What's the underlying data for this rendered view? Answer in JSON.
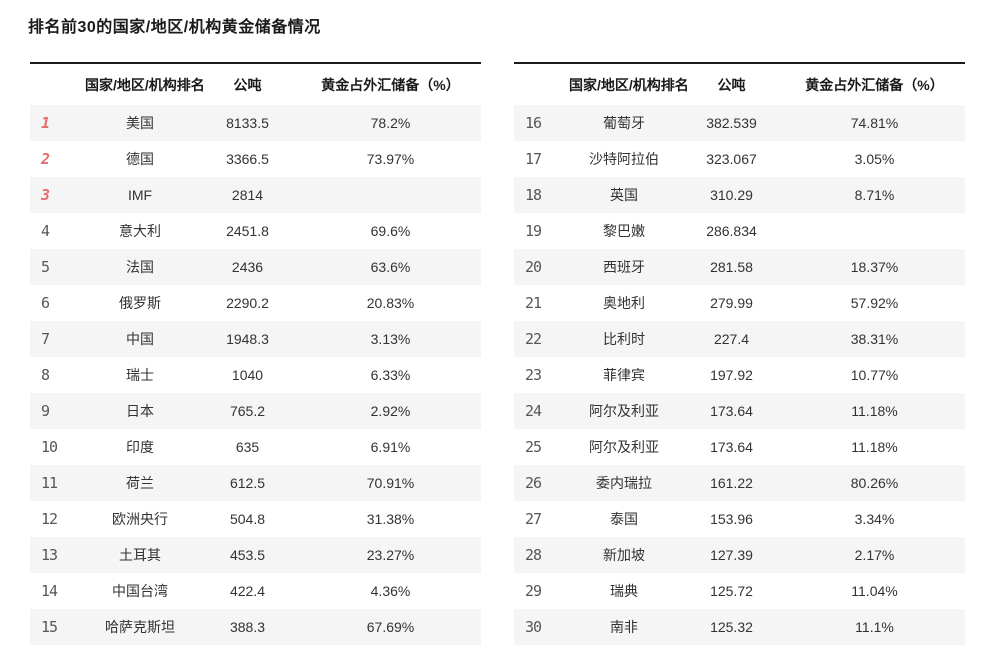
{
  "page": {
    "title": "排名前30的国家/地区/机构黄金储备情况"
  },
  "table_headers": {
    "rank": "",
    "name": "国家/地区/机构排名",
    "tonnes": "公吨",
    "pct": "黄金占外汇储备（%）"
  },
  "colors": {
    "rank_top3_red": "#e96a6a",
    "rank_normal": "#575757",
    "row_stripe": "#f5f5f5",
    "table_top_border": "#1b1b1b",
    "cell_text": "#333333",
    "header_text": "#1a1a1a"
  },
  "chart_data": {
    "type": "table",
    "title": "排名前30的国家/地区/机构黄金储备情况",
    "columns": [
      "国家/地区/机构排名",
      "公吨",
      "黄金占外汇储备（%）"
    ],
    "layout": {
      "split": [
        15,
        15
      ],
      "striped": true,
      "top3_highlighted": true
    },
    "rows": [
      {
        "rank": 1,
        "name": "美国",
        "tonnes": "8133.5",
        "pct": "78.2%"
      },
      {
        "rank": 2,
        "name": "德国",
        "tonnes": "3366.5",
        "pct": "73.97%"
      },
      {
        "rank": 3,
        "name": "IMF",
        "tonnes": "2814",
        "pct": ""
      },
      {
        "rank": 4,
        "name": "意大利",
        "tonnes": "2451.8",
        "pct": "69.6%"
      },
      {
        "rank": 5,
        "name": "法国",
        "tonnes": "2436",
        "pct": "63.6%"
      },
      {
        "rank": 6,
        "name": "俄罗斯",
        "tonnes": "2290.2",
        "pct": "20.83%"
      },
      {
        "rank": 7,
        "name": "中国",
        "tonnes": "1948.3",
        "pct": "3.13%"
      },
      {
        "rank": 8,
        "name": "瑞士",
        "tonnes": "1040",
        "pct": "6.33%"
      },
      {
        "rank": 9,
        "name": "日本",
        "tonnes": "765.2",
        "pct": "2.92%"
      },
      {
        "rank": 10,
        "name": "印度",
        "tonnes": "635",
        "pct": "6.91%"
      },
      {
        "rank": 11,
        "name": "荷兰",
        "tonnes": "612.5",
        "pct": "70.91%"
      },
      {
        "rank": 12,
        "name": "欧洲央行",
        "tonnes": "504.8",
        "pct": "31.38%"
      },
      {
        "rank": 13,
        "name": "土耳其",
        "tonnes": "453.5",
        "pct": "23.27%"
      },
      {
        "rank": 14,
        "name": "中国台湾",
        "tonnes": "422.4",
        "pct": "4.36%"
      },
      {
        "rank": 15,
        "name": "哈萨克斯坦",
        "tonnes": "388.3",
        "pct": "67.69%"
      },
      {
        "rank": 16,
        "name": "葡萄牙",
        "tonnes": "382.539",
        "pct": "74.81%"
      },
      {
        "rank": 17,
        "name": "沙特阿拉伯",
        "tonnes": "323.067",
        "pct": "3.05%"
      },
      {
        "rank": 18,
        "name": "英国",
        "tonnes": "310.29",
        "pct": "8.71%"
      },
      {
        "rank": 19,
        "name": "黎巴嫩",
        "tonnes": "286.834",
        "pct": ""
      },
      {
        "rank": 20,
        "name": "西班牙",
        "tonnes": "281.58",
        "pct": "18.37%"
      },
      {
        "rank": 21,
        "name": "奥地利",
        "tonnes": "279.99",
        "pct": "57.92%"
      },
      {
        "rank": 22,
        "name": "比利时",
        "tonnes": "227.4",
        "pct": "38.31%"
      },
      {
        "rank": 23,
        "name": "菲律宾",
        "tonnes": "197.92",
        "pct": "10.77%"
      },
      {
        "rank": 24,
        "name": "阿尔及利亚",
        "tonnes": "173.64",
        "pct": "11.18%"
      },
      {
        "rank": 25,
        "name": "阿尔及利亚",
        "tonnes": "173.64",
        "pct": "11.18%"
      },
      {
        "rank": 26,
        "name": "委内瑞拉",
        "tonnes": "161.22",
        "pct": "80.26%"
      },
      {
        "rank": 27,
        "name": "泰国",
        "tonnes": "153.96",
        "pct": "3.34%"
      },
      {
        "rank": 28,
        "name": "新加坡",
        "tonnes": "127.39",
        "pct": "2.17%"
      },
      {
        "rank": 29,
        "name": "瑞典",
        "tonnes": "125.72",
        "pct": "11.04%"
      },
      {
        "rank": 30,
        "name": "南非",
        "tonnes": "125.32",
        "pct": "11.1%"
      }
    ]
  }
}
